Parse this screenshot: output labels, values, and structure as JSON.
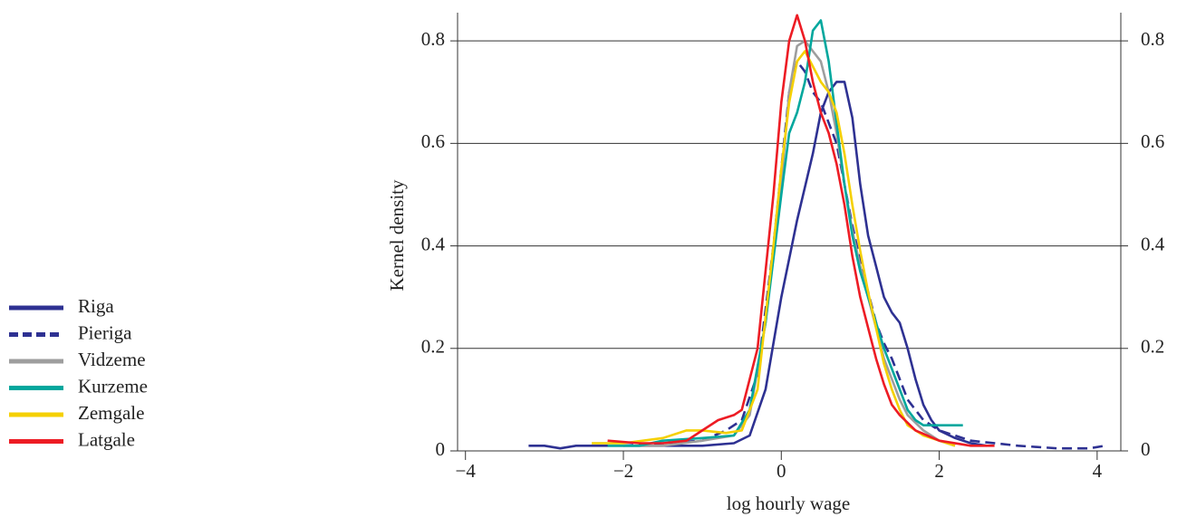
{
  "chart_data": {
    "type": "line",
    "x_label": "log hourly wage",
    "y_label": "Kernel density",
    "xlim": [
      -4.1,
      4.3
    ],
    "xticks": [
      {
        "value": -4,
        "label": "−4"
      },
      {
        "value": -2,
        "label": "−2"
      },
      0,
      2,
      4
    ],
    "ylim": [
      0,
      0.855
    ],
    "yticks": [
      0,
      0.2,
      0.4,
      0.6,
      0.8
    ],
    "y2lim": [
      0,
      0.855
    ],
    "y2ticks": [
      0,
      0.2,
      0.4,
      0.6,
      0.8
    ],
    "grid": true,
    "legend": "left",
    "series": [
      {
        "name": "Riga",
        "color": "#2e3192",
        "dashed": false,
        "x": [
          -3.2,
          -3.0,
          -2.8,
          -2.6,
          -2.0,
          -1.5,
          -1.0,
          -0.6,
          -0.4,
          -0.2,
          0,
          0.2,
          0.4,
          0.5,
          0.6,
          0.7,
          0.8,
          0.9,
          1.0,
          1.1,
          1.2,
          1.3,
          1.4,
          1.5,
          1.6,
          1.7,
          1.8,
          1.9,
          2.0,
          2.2,
          2.4,
          2.6
        ],
        "values": [
          0.01,
          0.01,
          0.005,
          0.01,
          0.01,
          0.01,
          0.01,
          0.015,
          0.03,
          0.12,
          0.3,
          0.45,
          0.58,
          0.66,
          0.7,
          0.72,
          0.72,
          0.65,
          0.52,
          0.42,
          0.36,
          0.3,
          0.27,
          0.25,
          0.2,
          0.14,
          0.09,
          0.06,
          0.04,
          0.025,
          0.015,
          0.01
        ]
      },
      {
        "name": "Pieriga",
        "color": "#2e3192",
        "dashed": true,
        "x": [
          -2.0,
          -1.5,
          -1.0,
          -0.7,
          -0.5,
          -0.3,
          -0.1,
          0,
          0.1,
          0.2,
          0.3,
          0.4,
          0.5,
          0.6,
          0.7,
          0.8,
          0.9,
          1.0,
          1.1,
          1.2,
          1.3,
          1.4,
          1.5,
          1.6,
          1.7,
          1.8,
          2.0,
          2.4,
          3.0,
          3.5,
          3.9,
          4.1
        ],
        "values": [
          0.01,
          0.015,
          0.02,
          0.04,
          0.06,
          0.15,
          0.4,
          0.55,
          0.7,
          0.76,
          0.74,
          0.7,
          0.68,
          0.64,
          0.6,
          0.52,
          0.44,
          0.37,
          0.31,
          0.25,
          0.21,
          0.18,
          0.14,
          0.1,
          0.08,
          0.06,
          0.04,
          0.02,
          0.01,
          0.005,
          0.005,
          0.01
        ]
      },
      {
        "name": "Vidzeme",
        "color": "#9e9e9e",
        "dashed": false,
        "x": [
          -2.0,
          -1.5,
          -1.0,
          -0.6,
          -0.4,
          -0.2,
          0,
          0.1,
          0.2,
          0.3,
          0.4,
          0.5,
          0.6,
          0.7,
          0.8,
          0.9,
          1.0,
          1.1,
          1.2,
          1.3,
          1.4,
          1.5,
          1.6,
          1.8,
          2.0,
          2.2
        ],
        "values": [
          0.01,
          0.01,
          0.02,
          0.03,
          0.07,
          0.25,
          0.52,
          0.7,
          0.79,
          0.8,
          0.78,
          0.76,
          0.7,
          0.62,
          0.52,
          0.43,
          0.36,
          0.3,
          0.24,
          0.18,
          0.14,
          0.1,
          0.07,
          0.04,
          0.02,
          0.01
        ]
      },
      {
        "name": "Kurzeme",
        "color": "#00a79d",
        "dashed": false,
        "x": [
          -2.2,
          -1.8,
          -1.5,
          -1.0,
          -0.6,
          -0.4,
          -0.2,
          0,
          0.1,
          0.2,
          0.3,
          0.4,
          0.5,
          0.6,
          0.7,
          0.8,
          0.9,
          1.0,
          1.1,
          1.2,
          1.3,
          1.4,
          1.5,
          1.6,
          1.7,
          1.8,
          2.0,
          2.3
        ],
        "values": [
          0.01,
          0.01,
          0.02,
          0.025,
          0.03,
          0.08,
          0.25,
          0.5,
          0.62,
          0.66,
          0.72,
          0.82,
          0.84,
          0.76,
          0.64,
          0.52,
          0.42,
          0.35,
          0.3,
          0.25,
          0.2,
          0.16,
          0.12,
          0.08,
          0.06,
          0.05,
          0.05,
          0.05
        ]
      },
      {
        "name": "Zemgale",
        "color": "#f5d000",
        "dashed": false,
        "x": [
          -2.4,
          -2.0,
          -1.5,
          -1.2,
          -1.0,
          -0.7,
          -0.5,
          -0.3,
          -0.1,
          0,
          0.1,
          0.2,
          0.3,
          0.4,
          0.5,
          0.6,
          0.7,
          0.8,
          0.9,
          1.0,
          1.1,
          1.2,
          1.3,
          1.4,
          1.5,
          1.6,
          1.8,
          2.0,
          2.2
        ],
        "values": [
          0.015,
          0.015,
          0.025,
          0.04,
          0.04,
          0.035,
          0.04,
          0.12,
          0.4,
          0.55,
          0.68,
          0.76,
          0.78,
          0.75,
          0.72,
          0.7,
          0.66,
          0.58,
          0.48,
          0.39,
          0.31,
          0.24,
          0.17,
          0.12,
          0.08,
          0.05,
          0.03,
          0.02,
          0.01
        ]
      },
      {
        "name": "Latgale",
        "color": "#ed1c24",
        "dashed": false,
        "x": [
          -2.2,
          -1.8,
          -1.5,
          -1.2,
          -1.0,
          -0.8,
          -0.6,
          -0.5,
          -0.3,
          -0.1,
          0,
          0.1,
          0.2,
          0.3,
          0.4,
          0.5,
          0.6,
          0.7,
          0.8,
          0.9,
          1.0,
          1.1,
          1.2,
          1.3,
          1.4,
          1.5,
          1.7,
          2.0,
          2.4,
          2.7
        ],
        "values": [
          0.02,
          0.015,
          0.015,
          0.02,
          0.04,
          0.06,
          0.07,
          0.08,
          0.2,
          0.5,
          0.68,
          0.8,
          0.85,
          0.8,
          0.72,
          0.66,
          0.62,
          0.56,
          0.48,
          0.38,
          0.3,
          0.24,
          0.18,
          0.13,
          0.09,
          0.07,
          0.04,
          0.02,
          0.01,
          0.01
        ]
      }
    ]
  }
}
